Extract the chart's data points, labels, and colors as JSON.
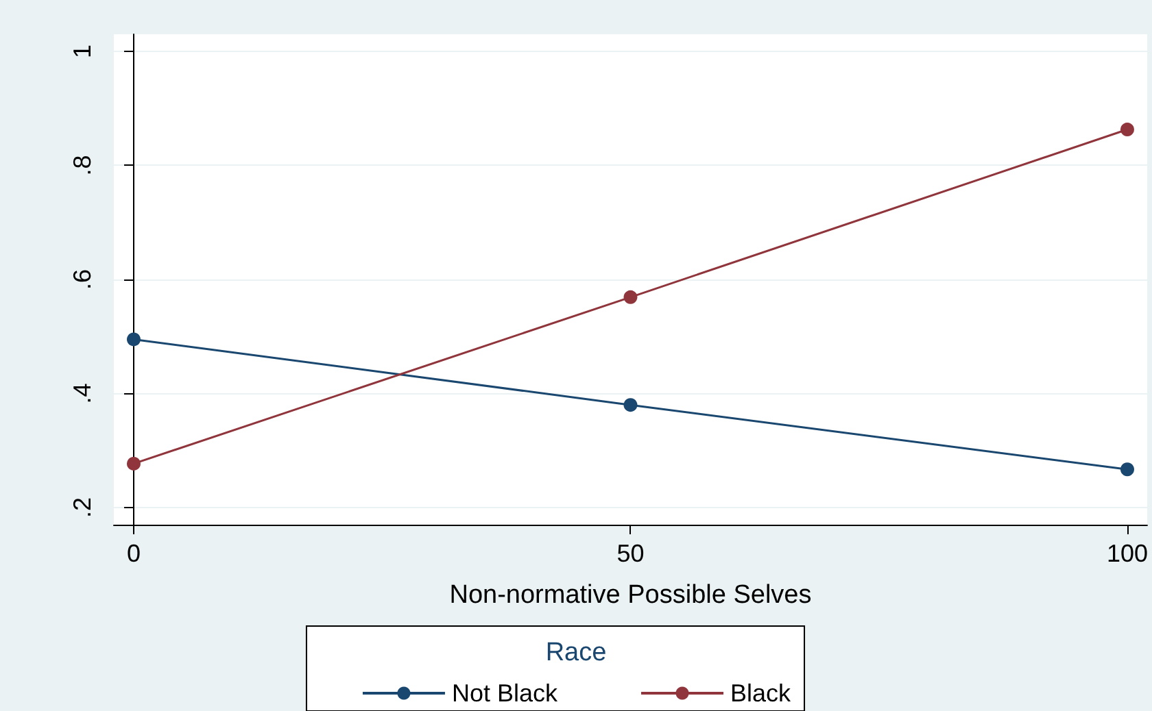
{
  "chart_data": {
    "type": "line",
    "xlabel": "Non-normative Possible Selves",
    "legend_title": "Race",
    "x": [
      0,
      50,
      100
    ],
    "series": [
      {
        "name": "Not Black",
        "color": "#1a476f",
        "values": [
          0.495,
          0.38,
          0.267
        ]
      },
      {
        "name": "Black",
        "color": "#90353b",
        "values": [
          0.277,
          0.569,
          0.863
        ]
      }
    ],
    "xlim": [
      -2,
      102
    ],
    "xticks": [
      0,
      50,
      100
    ],
    "ylim": [
      0.17,
      1.03
    ],
    "yticks": [
      {
        "value": 0.2,
        "label": ".2"
      },
      {
        "value": 0.4,
        "label": ".4"
      },
      {
        "value": 0.6,
        "label": ".6"
      },
      {
        "value": 0.8,
        "label": ".8"
      },
      {
        "value": 1,
        "label": "1"
      }
    ],
    "grid": "y",
    "legend": "bottom",
    "marker": "circle",
    "line_style": "solid"
  }
}
